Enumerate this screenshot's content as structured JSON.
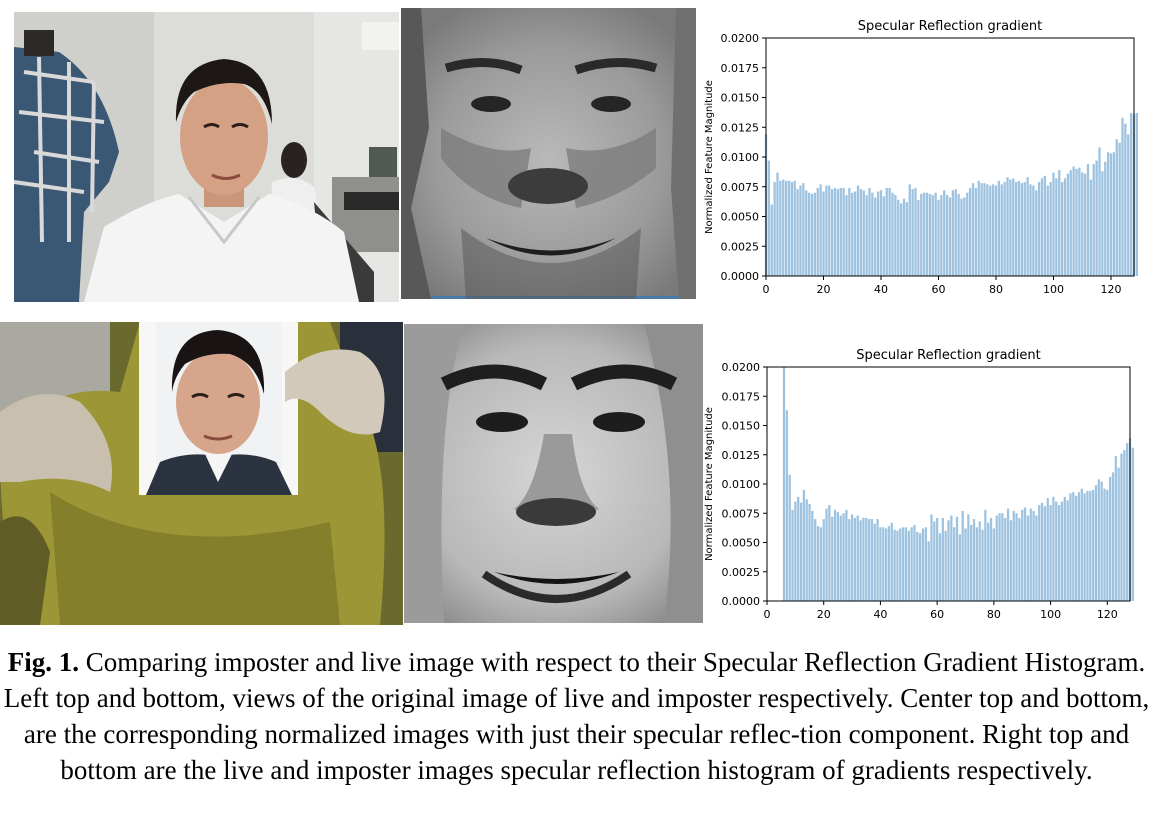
{
  "figure": {
    "caption_label": "Fig. 1.",
    "caption_text": " Comparing imposter and live image with respect to their Specular Reflection Gradient Histogram. Left top and bottom, views of the original image of live and imposter respectively. Center top and bottom, are the corresponding normalized images with just their specular reflec-tion component. Right top and bottom are the live and imposter images specular reflection histogram of gradients respectively."
  },
  "colors": {
    "bar": "#9ec3e0",
    "axis": "#000000"
  },
  "chart_data": [
    {
      "type": "bar",
      "title": "Specular Reflection gradient",
      "xlabel": "",
      "ylabel": "Normalized Feature Magnitude",
      "xlim": [
        0,
        128
      ],
      "ylim": [
        0,
        0.02
      ],
      "xticks": [
        "0",
        "20",
        "40",
        "60",
        "80",
        "100",
        "120"
      ],
      "yticks": [
        "0.0000",
        "0.0025",
        "0.0050",
        "0.0075",
        "0.0100",
        "0.0125",
        "0.0150",
        "0.0175",
        "0.0200"
      ],
      "values": [
        0.0119,
        0.0097,
        0.006,
        0.0079,
        0.0087,
        0.008,
        0.0081,
        0.008,
        0.008,
        0.0079,
        0.008,
        0.0073,
        0.0076,
        0.0078,
        0.0072,
        0.007,
        0.0069,
        0.007,
        0.0074,
        0.0077,
        0.0071,
        0.0076,
        0.0076,
        0.0073,
        0.0074,
        0.0073,
        0.0074,
        0.0074,
        0.0068,
        0.0074,
        0.007,
        0.0071,
        0.0076,
        0.0073,
        0.0072,
        0.0068,
        0.0074,
        0.007,
        0.0066,
        0.0071,
        0.0072,
        0.0067,
        0.0074,
        0.0074,
        0.007,
        0.0068,
        0.0064,
        0.0061,
        0.0065,
        0.0062,
        0.0077,
        0.0073,
        0.0074,
        0.0064,
        0.0069,
        0.007,
        0.007,
        0.0069,
        0.0068,
        0.007,
        0.0064,
        0.0068,
        0.0072,
        0.0068,
        0.0066,
        0.0072,
        0.0073,
        0.0069,
        0.0065,
        0.0066,
        0.007,
        0.0074,
        0.0078,
        0.0074,
        0.008,
        0.0078,
        0.0078,
        0.0077,
        0.0076,
        0.0077,
        0.0076,
        0.008,
        0.0077,
        0.0079,
        0.0083,
        0.0081,
        0.0082,
        0.0079,
        0.008,
        0.0078,
        0.0079,
        0.0083,
        0.0077,
        0.0076,
        0.0072,
        0.0079,
        0.0082,
        0.0084,
        0.0076,
        0.0079,
        0.0087,
        0.0082,
        0.0089,
        0.0079,
        0.0082,
        0.0086,
        0.0089,
        0.0092,
        0.009,
        0.0091,
        0.0087,
        0.0086,
        0.0094,
        0.0081,
        0.0094,
        0.0097,
        0.0108,
        0.0088,
        0.0096,
        0.0104,
        0.0103,
        0.0104,
        0.0115,
        0.0112,
        0.0133,
        0.0128,
        0.0119,
        0.0137,
        0.0136,
        0.0137
      ]
    },
    {
      "type": "bar",
      "title": "Specular Reflection gradient",
      "xlabel": "",
      "ylabel": "Normalized Feature Magnitude",
      "xlim": [
        0,
        128
      ],
      "ylim": [
        0,
        0.02
      ],
      "xticks": [
        "0",
        "20",
        "40",
        "60",
        "80",
        "100",
        "120"
      ],
      "yticks": [
        "0.0000",
        "0.0025",
        "0.0050",
        "0.0075",
        "0.0100",
        "0.0125",
        "0.0150",
        "0.0175",
        "0.0200"
      ],
      "values": [
        0,
        0,
        0,
        0,
        0,
        0,
        0.02,
        0.0163,
        0.0108,
        0.0078,
        0.0085,
        0.0089,
        0.0084,
        0.0095,
        0.0087,
        0.0083,
        0.0077,
        0.007,
        0.0064,
        0.0063,
        0.007,
        0.0079,
        0.0082,
        0.0072,
        0.0078,
        0.0076,
        0.0073,
        0.0075,
        0.0078,
        0.007,
        0.0074,
        0.0071,
        0.0073,
        0.0069,
        0.0071,
        0.0071,
        0.007,
        0.007,
        0.0066,
        0.007,
        0.0063,
        0.0063,
        0.0062,
        0.0064,
        0.0067,
        0.0061,
        0.006,
        0.0062,
        0.0063,
        0.0063,
        0.006,
        0.0063,
        0.0065,
        0.0059,
        0.0058,
        0.0062,
        0.0063,
        0.0051,
        0.0074,
        0.0068,
        0.0071,
        0.0058,
        0.0071,
        0.006,
        0.0069,
        0.0073,
        0.0063,
        0.0072,
        0.0057,
        0.0077,
        0.0062,
        0.0074,
        0.0065,
        0.007,
        0.0063,
        0.0068,
        0.0061,
        0.0078,
        0.0067,
        0.0071,
        0.0062,
        0.0073,
        0.0075,
        0.0075,
        0.0071,
        0.0079,
        0.0069,
        0.0077,
        0.0075,
        0.0071,
        0.0078,
        0.008,
        0.0073,
        0.0079,
        0.0077,
        0.0073,
        0.0082,
        0.0084,
        0.0081,
        0.0088,
        0.0082,
        0.0089,
        0.0085,
        0.0082,
        0.0085,
        0.0089,
        0.0086,
        0.0092,
        0.0093,
        0.009,
        0.0093,
        0.0096,
        0.0092,
        0.0094,
        0.0094,
        0.0095,
        0.0099,
        0.0104,
        0.0102,
        0.0096,
        0.0095,
        0.0106,
        0.011,
        0.0124,
        0.0114,
        0.0126,
        0.0129,
        0.0135,
        0.0139,
        0.0131
      ]
    }
  ]
}
